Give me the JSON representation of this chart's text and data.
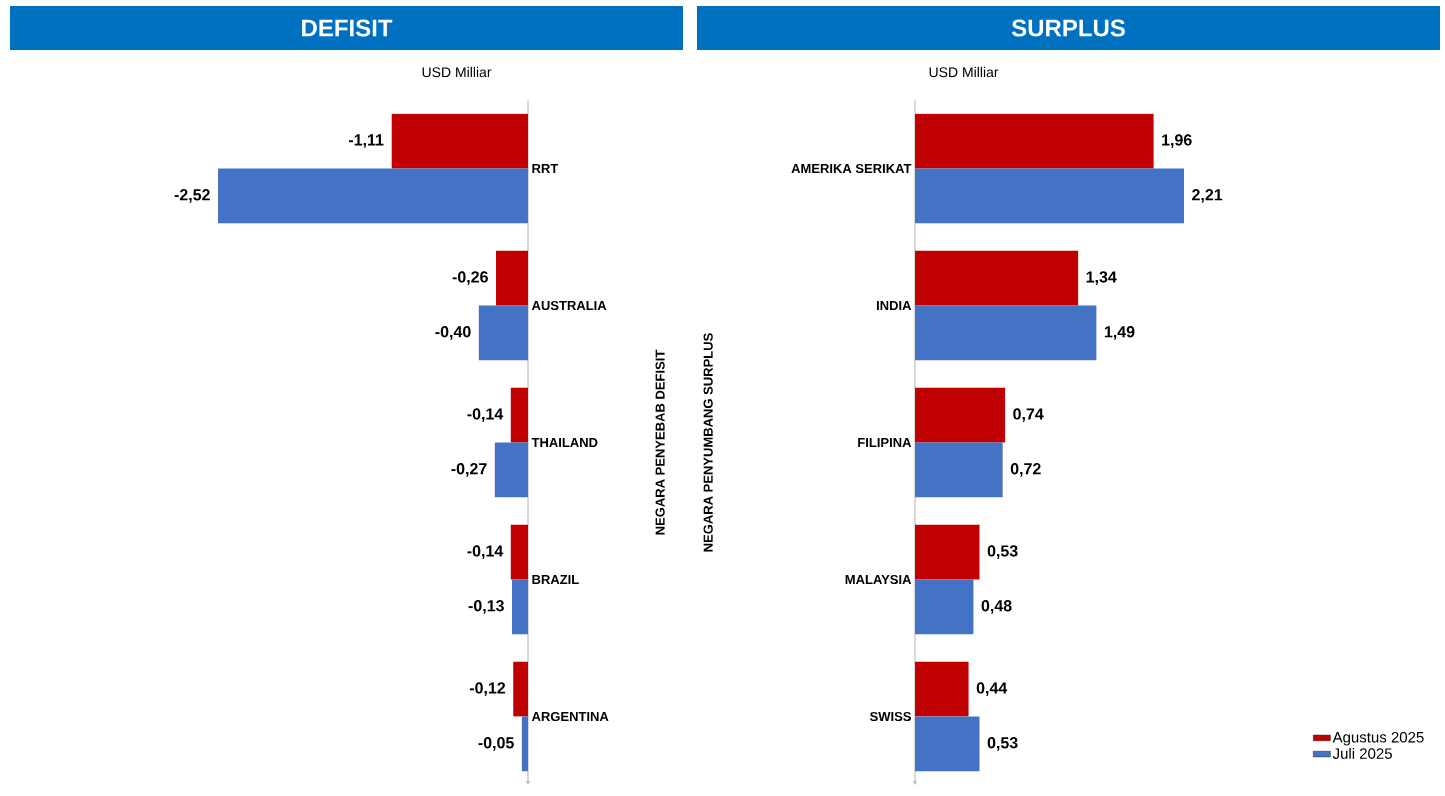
{
  "chart_data": [
    {
      "type": "bar",
      "orientation": "horizontal",
      "title": "DEFISIT",
      "subtitle": "USD Milliar",
      "ylabel": "NEGARA PENYEBAB DEFISIT",
      "categories": [
        "RRT",
        "AUSTRALIA",
        "THAILAND",
        "BRAZIL",
        "ARGENTINA"
      ],
      "series": [
        {
          "color": "#c00000",
          "values": [
            -1.11,
            -0.26,
            -0.14,
            -0.14,
            -0.12
          ],
          "value_labels": [
            "-1,11",
            "-0,26",
            "-0,14",
            "-0,14",
            "-0,12"
          ]
        },
        {
          "color": "#4472c4",
          "values": [
            -2.52,
            -0.4,
            -0.27,
            -0.13,
            -0.05
          ],
          "value_labels": [
            "-2,52",
            "-0,40",
            "-0,27",
            "-0,13",
            "-0,05"
          ]
        }
      ],
      "legend": false
    },
    {
      "type": "bar",
      "orientation": "horizontal",
      "title": "SURPLUS",
      "subtitle": "USD Milliar",
      "ylabel": "NEGARA PENYUMBANG SURPLUS",
      "categories": [
        "AMERIKA SERIKAT",
        "INDIA",
        "FILIPINA",
        "MALAYSIA",
        "SWISS"
      ],
      "series": [
        {
          "name": "Agustus 2025",
          "color": "#c00000",
          "values": [
            1.96,
            1.34,
            0.74,
            0.53,
            0.44
          ],
          "value_labels": [
            "1,96",
            "1,34",
            "0,74",
            "0,53",
            "0,44"
          ]
        },
        {
          "name": "Juli 2025",
          "color": "#4472c4",
          "values": [
            2.21,
            1.49,
            0.72,
            0.48,
            0.53
          ],
          "value_labels": [
            "2,21",
            "1,49",
            "0,72",
            "0,48",
            "0,53"
          ]
        }
      ],
      "legend": "bottom right"
    }
  ]
}
